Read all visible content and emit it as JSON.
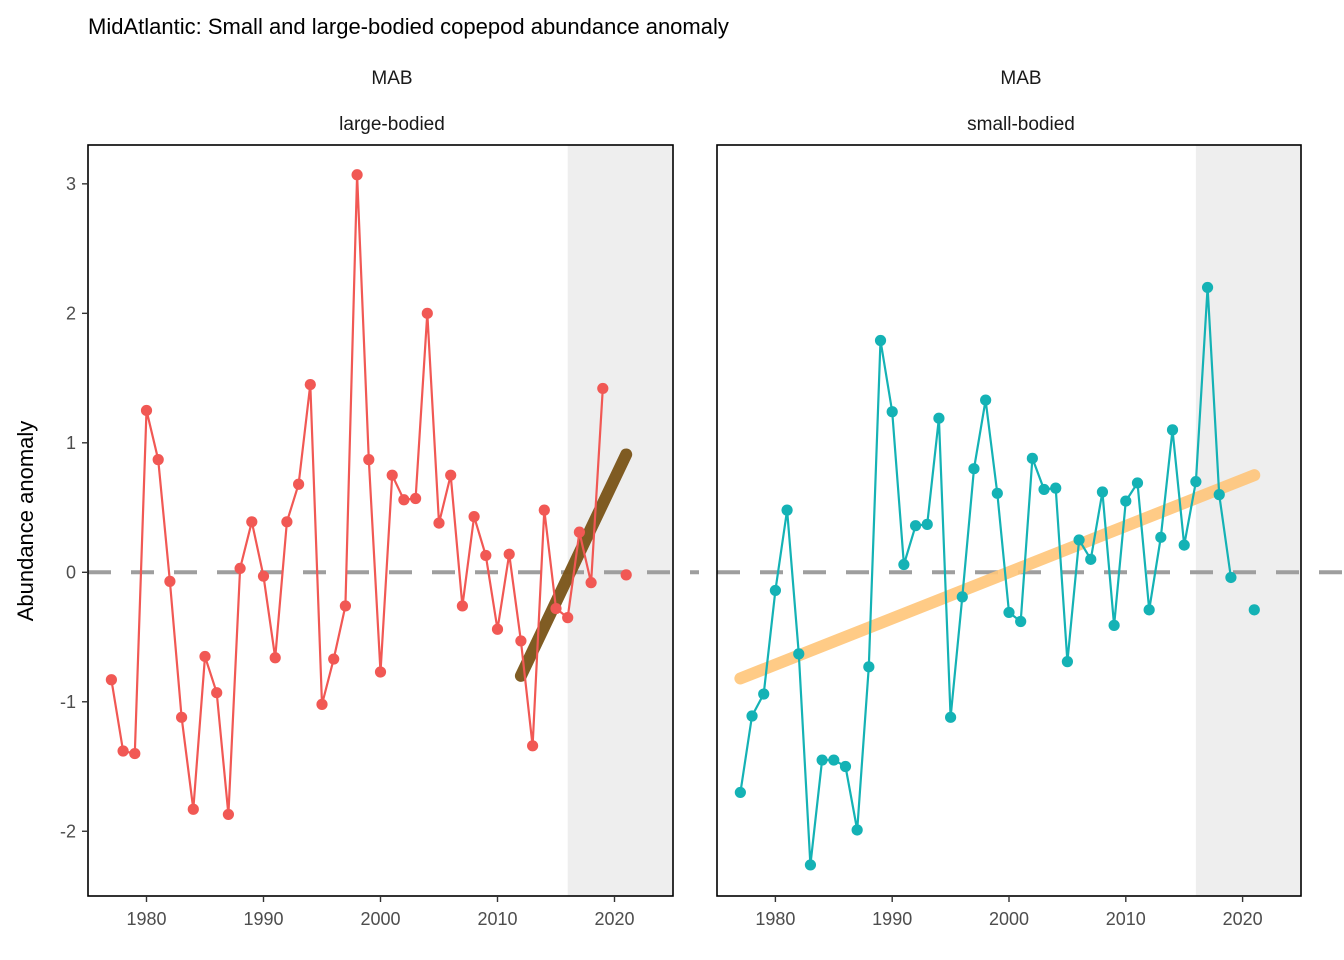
{
  "title": "MidAtlantic: Small and large-bodied copepod abundance anomaly",
  "colors": {
    "large": "#F15854",
    "small": "#14B2B5",
    "trend_large": "#7A5418",
    "trend_small": "#FFC67A",
    "shade": "#EEEEEE",
    "zero_line": "#9E9E9E"
  },
  "chart_data": {
    "type": "line",
    "xlabel": "",
    "ylabel": "Abundance anomaly",
    "xlim": [
      1975,
      2025
    ],
    "ylim": [
      -2.5,
      3.3
    ],
    "x_ticks": [
      1980,
      1990,
      2000,
      2010,
      2020
    ],
    "x_tick_labels": [
      "1980",
      "1990",
      "2000",
      "2010",
      "2020"
    ],
    "y_ticks": [
      -2,
      -1,
      0,
      1,
      2,
      3
    ],
    "y_tick_labels": [
      "-2",
      "-1",
      "0",
      "1",
      "2",
      "3"
    ],
    "reference_line": 0,
    "shaded_region": [
      2016,
      2025
    ],
    "facets": [
      {
        "strip_top": "MAB",
        "strip_bottom": "large-bodied",
        "color_key": "large",
        "x": [
          1977,
          1978,
          1979,
          1980,
          1981,
          1982,
          1983,
          1984,
          1985,
          1986,
          1987,
          1988,
          1989,
          1990,
          1991,
          1992,
          1993,
          1994,
          1995,
          1996,
          1997,
          1998,
          1999,
          2000,
          2001,
          2002,
          2003,
          2004,
          2005,
          2006,
          2007,
          2008,
          2009,
          2010,
          2011,
          2012,
          2013,
          2014,
          2015,
          2016,
          2017,
          2018,
          2019,
          2021
        ],
        "y": [
          -0.83,
          -1.38,
          -1.4,
          1.25,
          0.87,
          -0.07,
          -1.12,
          -1.83,
          -0.65,
          -0.93,
          -1.87,
          0.03,
          0.39,
          -0.03,
          -0.66,
          0.39,
          0.68,
          1.45,
          -1.02,
          -0.67,
          -0.26,
          3.07,
          0.87,
          -0.77,
          0.75,
          0.56,
          0.57,
          2.0,
          0.38,
          0.75,
          -0.26,
          0.43,
          0.13,
          -0.44,
          0.14,
          -0.53,
          -1.34,
          0.48,
          -0.28,
          -0.35,
          0.31,
          -0.08,
          1.42,
          -0.02
        ],
        "connected_until": 2019,
        "trend": {
          "x": [
            2012,
            2021
          ],
          "y": [
            -0.8,
            0.91
          ]
        }
      },
      {
        "strip_top": "MAB",
        "strip_bottom": "small-bodied",
        "color_key": "small",
        "x": [
          1977,
          1978,
          1979,
          1980,
          1981,
          1982,
          1983,
          1984,
          1985,
          1986,
          1987,
          1988,
          1989,
          1990,
          1991,
          1992,
          1993,
          1994,
          1995,
          1996,
          1997,
          1998,
          1999,
          2000,
          2001,
          2002,
          2003,
          2004,
          2005,
          2006,
          2007,
          2008,
          2009,
          2010,
          2011,
          2012,
          2013,
          2014,
          2015,
          2016,
          2017,
          2018,
          2019,
          2021
        ],
        "y": [
          -1.7,
          -1.11,
          -0.94,
          -0.14,
          0.48,
          -0.63,
          -2.26,
          -1.45,
          -1.45,
          -1.5,
          -1.99,
          -0.73,
          1.79,
          1.24,
          0.06,
          0.36,
          0.37,
          1.19,
          -1.12,
          -0.19,
          0.8,
          1.33,
          0.61,
          -0.31,
          -0.38,
          0.88,
          0.64,
          0.65,
          -0.69,
          0.25,
          0.1,
          0.62,
          -0.41,
          0.55,
          0.69,
          -0.29,
          0.27,
          1.1,
          0.21,
          0.7,
          2.2,
          0.6,
          -0.04,
          -0.29
        ],
        "connected_until": 2019,
        "trend": {
          "x": [
            1977,
            2021
          ],
          "y": [
            -0.82,
            0.75
          ]
        }
      }
    ]
  }
}
